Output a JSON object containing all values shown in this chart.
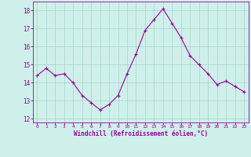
{
  "x": [
    0,
    1,
    2,
    3,
    4,
    5,
    6,
    7,
    8,
    9,
    10,
    11,
    12,
    13,
    14,
    15,
    16,
    17,
    18,
    19,
    20,
    21,
    22,
    23
  ],
  "y": [
    14.4,
    14.8,
    14.4,
    14.5,
    14.0,
    13.3,
    12.9,
    12.5,
    12.8,
    13.3,
    14.5,
    15.6,
    16.9,
    17.5,
    18.1,
    17.3,
    16.5,
    15.5,
    15.0,
    14.5,
    13.9,
    14.1,
    13.8,
    13.5
  ],
  "line_color": "#990099",
  "marker": "+",
  "marker_size": 3,
  "line_width": 0.8,
  "bg_color": "#cff0ea",
  "grid_color": "#aad8d4",
  "xlabel": "Windchill (Refroidissement éolien,°C)",
  "tick_color": "#990099",
  "ylim": [
    11.8,
    18.5
  ],
  "xlim": [
    -0.5,
    23.5
  ],
  "yticks": [
    12,
    13,
    14,
    15,
    16,
    17,
    18
  ],
  "xticks": [
    0,
    1,
    2,
    3,
    4,
    5,
    6,
    7,
    8,
    9,
    10,
    11,
    12,
    13,
    14,
    15,
    16,
    17,
    18,
    19,
    20,
    21,
    22,
    23
  ]
}
